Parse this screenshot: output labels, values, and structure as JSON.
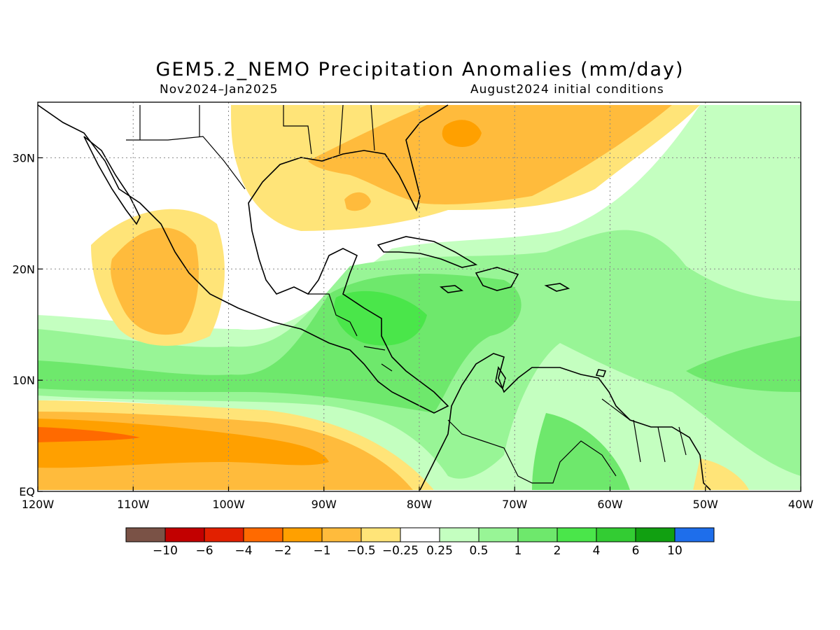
{
  "title": "GEM5.2_NEMO Precipitation Anomalies (mm/day)",
  "subtitle_left": "Nov2024–Jan2025",
  "subtitle_right": "August2024 initial conditions",
  "map": {
    "lon_range": [
      -120,
      -40
    ],
    "lat_range": [
      0,
      35
    ],
    "grid": "dotted",
    "x_ticks": [
      "120W",
      "110W",
      "100W",
      "90W",
      "80W",
      "70W",
      "60W",
      "50W",
      "40W"
    ],
    "x_tick_values": [
      -120,
      -110,
      -100,
      -90,
      -80,
      -70,
      -60,
      -50,
      -40
    ],
    "y_ticks": [
      "EQ",
      "10N",
      "20N",
      "30N"
    ],
    "y_tick_values": [
      0,
      10,
      20,
      30
    ]
  },
  "colorbar": {
    "colors": [
      "#7a5246",
      "#c20000",
      "#e22000",
      "#ff6a00",
      "#ffa000",
      "#ffbb3c",
      "#ffe478",
      "#ffffff",
      "#c4ffc0",
      "#98f596",
      "#6ee86c",
      "#4ae64a",
      "#33cc33",
      "#11a011",
      "#1e6eeb"
    ],
    "labels": [
      "−10",
      "−6",
      "−4",
      "−2",
      "−1",
      "−0.5",
      "−0.25",
      "0.25",
      "0.5",
      "1",
      "2",
      "4",
      "6",
      "10"
    ]
  }
}
